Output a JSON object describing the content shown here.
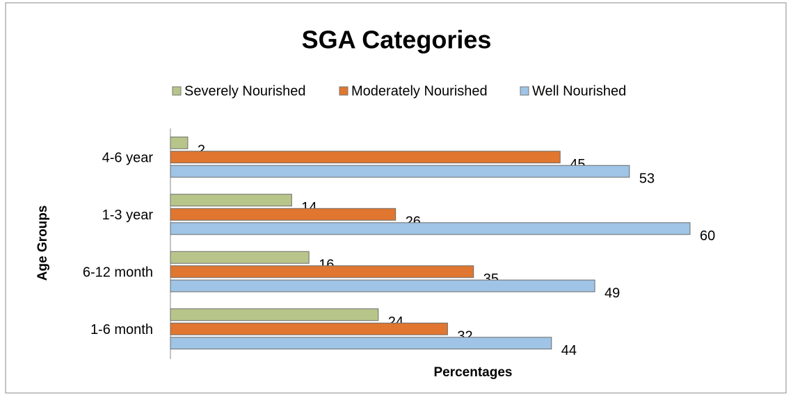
{
  "chart_data": {
    "type": "bar",
    "orientation": "horizontal",
    "title": "SGA Categories",
    "x_label": "Percentages",
    "y_label": "Age Groups",
    "categories": [
      "1-6 month",
      "6-12 month",
      "1-3 year",
      "4-6 year"
    ],
    "series": [
      {
        "name": "Severely Nourished",
        "color": "#b8c58a",
        "values": [
          24,
          16,
          14,
          2
        ]
      },
      {
        "name": "Moderately Nourished",
        "color": "#e0762f",
        "values": [
          32,
          35,
          26,
          45
        ]
      },
      {
        "name": "Well Nourished",
        "color": "#9fc4e6",
        "values": [
          44,
          49,
          60,
          53
        ]
      }
    ],
    "xlim": [
      0,
      62
    ],
    "legend": "top"
  }
}
